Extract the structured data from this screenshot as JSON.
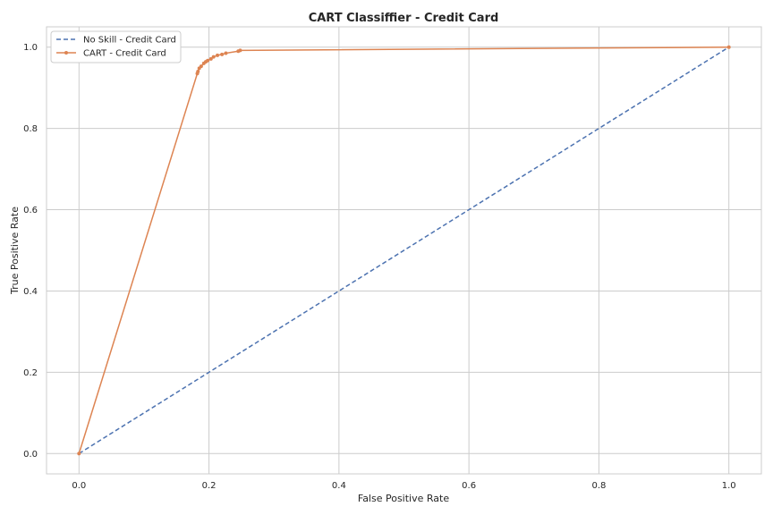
{
  "chart_data": {
    "type": "line",
    "title": "CART Classiffier - Credit Card",
    "xlabel": "False Positive Rate",
    "ylabel": "True Positive Rate",
    "xlim": [
      -0.05,
      1.05
    ],
    "ylim": [
      -0.05,
      1.05
    ],
    "xticks": [
      "0.0",
      "0.2",
      "0.4",
      "0.6",
      "0.8",
      "1.0"
    ],
    "yticks": [
      "0.0",
      "0.2",
      "0.4",
      "0.6",
      "0.8",
      "1.0"
    ],
    "grid": true,
    "legend_position": "upper-left",
    "series": [
      {
        "name": "No Skill - Credit Card",
        "style": "dashed",
        "marker": "none",
        "color": "#4c72b0",
        "x": [
          0.0,
          1.0
        ],
        "y": [
          0.0,
          1.0
        ]
      },
      {
        "name": "CART - Credit Card",
        "style": "solid",
        "marker": "dot",
        "color": "#dd8452",
        "x": [
          0.0,
          0.182,
          0.183,
          0.185,
          0.188,
          0.192,
          0.195,
          0.198,
          0.203,
          0.207,
          0.213,
          0.22,
          0.226,
          0.245,
          0.248,
          1.0
        ],
        "y": [
          0.0,
          0.935,
          0.94,
          0.948,
          0.953,
          0.96,
          0.964,
          0.967,
          0.971,
          0.976,
          0.98,
          0.982,
          0.985,
          0.99,
          0.992,
          1.0
        ]
      }
    ]
  }
}
